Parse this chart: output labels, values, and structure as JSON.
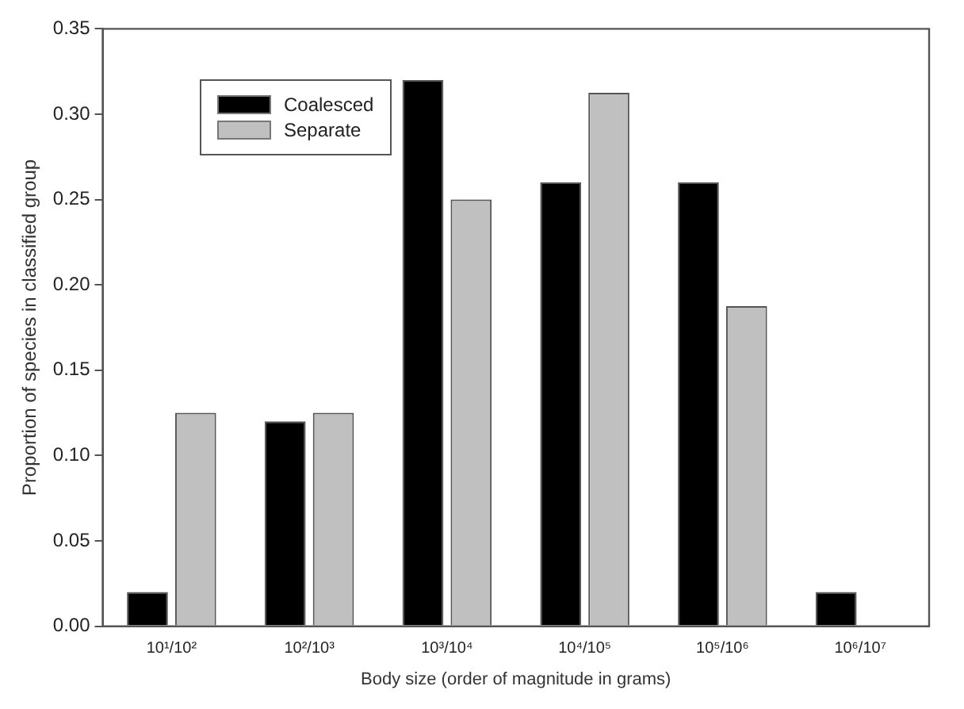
{
  "chart_data": {
    "type": "bar",
    "categories": [
      "10¹/10²",
      "10²/10³",
      "10³/10⁴",
      "10⁴/10⁵",
      "10⁵/10⁶",
      "10⁶/10⁷"
    ],
    "series": [
      {
        "name": "Coalesced",
        "color": "#000000",
        "values": [
          0.02,
          0.12,
          0.32,
          0.26,
          0.26,
          0.02
        ]
      },
      {
        "name": "Separate",
        "color": "#c0c0c0",
        "values": [
          0.125,
          0.125,
          0.25,
          0.3125,
          0.1875,
          null
        ]
      }
    ],
    "xlabel": "Body size (order of magnitude in grams)",
    "ylabel": "Proportion of species in classified group",
    "ylim": [
      0,
      0.35
    ],
    "yticks": [
      {
        "value": 0,
        "label": "0.00"
      },
      {
        "value": 0.05,
        "label": "0.05"
      },
      {
        "value": 0.1,
        "label": "0.10"
      },
      {
        "value": 0.15,
        "label": "0.15"
      },
      {
        "value": 0.2,
        "label": "0.20"
      },
      {
        "value": 0.25,
        "label": "0.25"
      },
      {
        "value": 0.3,
        "label": "0.30"
      },
      {
        "value": 0.35,
        "label": "0.35"
      }
    ],
    "grid": false,
    "legend": "top left"
  }
}
